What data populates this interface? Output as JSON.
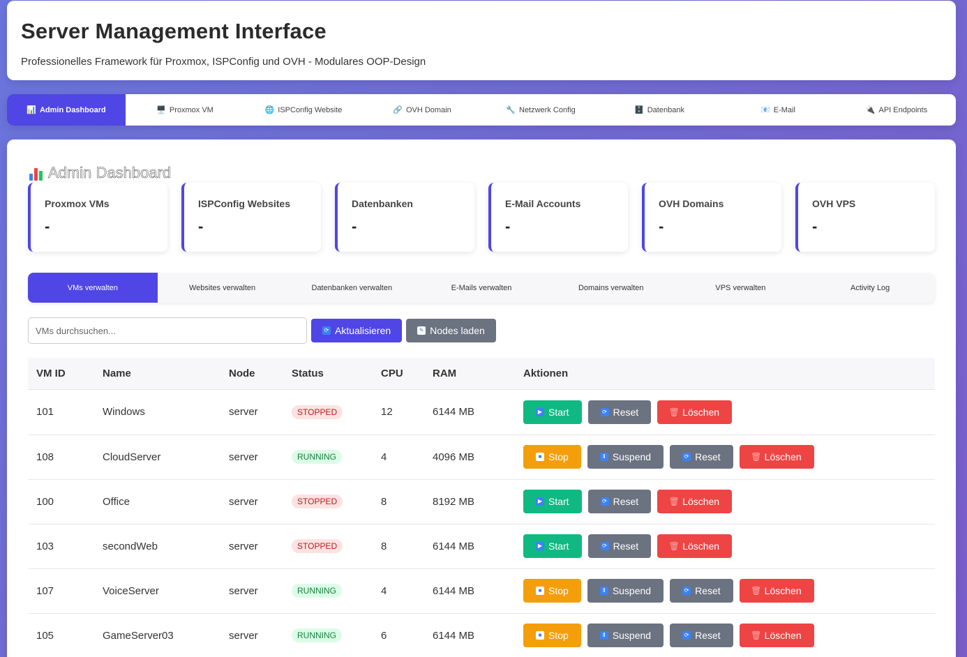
{
  "header": {
    "title": "Server Management Interface",
    "subtitle": "Professionelles Framework für Proxmox, ISPConfig und OVH - Modulares OOP-Design"
  },
  "nav": [
    {
      "label": "Admin Dashboard",
      "icon": "📊",
      "active": true
    },
    {
      "label": "Proxmox VM",
      "icon": "🖥️",
      "active": false
    },
    {
      "label": "ISPConfig Website",
      "icon": "🌐",
      "active": false
    },
    {
      "label": "OVH Domain",
      "icon": "🔗",
      "active": false
    },
    {
      "label": "Netzwerk Config",
      "icon": "🔧",
      "active": false
    },
    {
      "label": "Datenbank",
      "icon": "🗄️",
      "active": false
    },
    {
      "label": "E-Mail",
      "icon": "📧",
      "active": false
    },
    {
      "label": "API Endpoints",
      "icon": "🔌",
      "active": false
    }
  ],
  "dashboard": {
    "title": "Admin Dashboard",
    "stats": [
      {
        "label": "Proxmox VMs",
        "value": "-"
      },
      {
        "label": "ISPConfig Websites",
        "value": "-"
      },
      {
        "label": "Datenbanken",
        "value": "-"
      },
      {
        "label": "E-Mail Accounts",
        "value": "-"
      },
      {
        "label": "OVH Domains",
        "value": "-"
      },
      {
        "label": "OVH VPS",
        "value": "-"
      }
    ],
    "subtabs": [
      {
        "label": "VMs verwalten",
        "active": true
      },
      {
        "label": "Websites verwalten",
        "active": false
      },
      {
        "label": "Datenbanken verwalten",
        "active": false
      },
      {
        "label": "E-Mails verwalten",
        "active": false
      },
      {
        "label": "Domains verwalten",
        "active": false
      },
      {
        "label": "VPS verwalten",
        "active": false
      },
      {
        "label": "Activity Log",
        "active": false
      }
    ]
  },
  "toolbar": {
    "search_placeholder": "VMs durchsuchen...",
    "refresh_label": "Aktualisieren",
    "nodes_label": "Nodes laden"
  },
  "table": {
    "headers": [
      "VM ID",
      "Name",
      "Node",
      "Status",
      "CPU",
      "RAM",
      "Aktionen"
    ],
    "rows": [
      {
        "id": "101",
        "name": "Windows",
        "node": "server",
        "status": "STOPPED",
        "cpu": "12",
        "ram": "6144 MB"
      },
      {
        "id": "108",
        "name": "CloudServer",
        "node": "server",
        "status": "RUNNING",
        "cpu": "4",
        "ram": "4096 MB"
      },
      {
        "id": "100",
        "name": "Office",
        "node": "server",
        "status": "STOPPED",
        "cpu": "8",
        "ram": "8192 MB"
      },
      {
        "id": "103",
        "name": "secondWeb",
        "node": "server",
        "status": "STOPPED",
        "cpu": "8",
        "ram": "6144 MB"
      },
      {
        "id": "107",
        "name": "VoiceServer",
        "node": "server",
        "status": "RUNNING",
        "cpu": "4",
        "ram": "6144 MB"
      },
      {
        "id": "105",
        "name": "GameServer03",
        "node": "server",
        "status": "RUNNING",
        "cpu": "6",
        "ram": "6144 MB"
      }
    ],
    "action_labels": {
      "start": "Start",
      "stop": "Stop",
      "suspend": "Suspend",
      "reset": "Reset",
      "delete": "Löschen"
    }
  },
  "colors": {
    "accent": "#4f46e5",
    "start": "#10b981",
    "stop": "#f59e0b",
    "neutral": "#6b7280",
    "danger": "#ef4444"
  }
}
